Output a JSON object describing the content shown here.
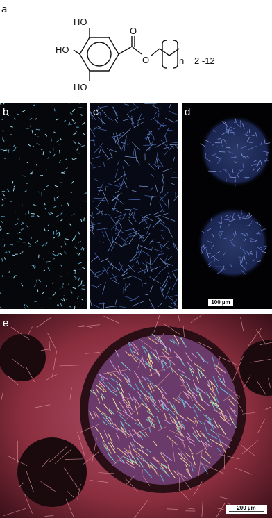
{
  "panels": {
    "a": {
      "label": "a",
      "structure": {
        "hydroxyl_labels": [
          "HO",
          "HO",
          "HO"
        ],
        "carbonyl_oxygen": "O",
        "ester_oxygen": "O",
        "chain_label": "n = 2 -12"
      }
    },
    "b": {
      "label": "b"
    },
    "c": {
      "label": "c"
    },
    "d": {
      "label": "d",
      "scale_bar": "100 µm"
    },
    "e": {
      "label": "e",
      "scale_bar": "200 µm"
    }
  }
}
